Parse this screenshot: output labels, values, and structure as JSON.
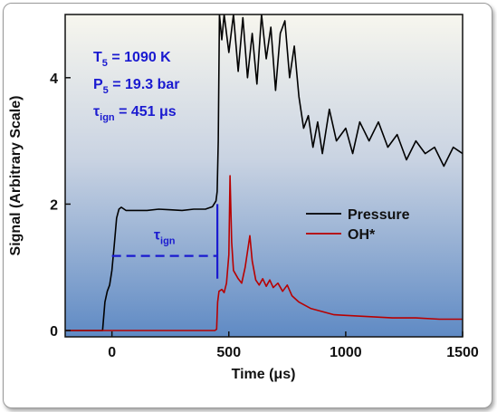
{
  "chart_data": {
    "type": "line",
    "xlabel": "Time (μs)",
    "ylabel": "Signal (Arbitrary Scale)",
    "xlim": [
      -200,
      1500
    ],
    "ylim": [
      -0.1,
      5.0
    ],
    "xticks": [
      0,
      500,
      1000,
      1500
    ],
    "yticks": [
      0,
      2,
      4
    ],
    "xtick_labels": [
      "0",
      "500",
      "1000",
      "1500"
    ],
    "ytick_labels": [
      "0",
      "2",
      "4"
    ],
    "legend_position": "center-right",
    "series": [
      {
        "name": "Pressure",
        "color": "#000000",
        "x": [
          -200,
          -40,
          -30,
          -20,
          -10,
          0,
          10,
          20,
          30,
          40,
          60,
          100,
          150,
          200,
          250,
          300,
          350,
          400,
          430,
          445,
          450,
          455,
          460,
          470,
          480,
          500,
          520,
          540,
          560,
          580,
          600,
          620,
          640,
          660,
          680,
          700,
          720,
          740,
          760,
          780,
          800,
          820,
          840,
          860,
          880,
          900,
          930,
          960,
          1000,
          1030,
          1060,
          1100,
          1140,
          1180,
          1220,
          1260,
          1300,
          1340,
          1380,
          1420,
          1460,
          1500
        ],
        "y": [
          0.0,
          0.0,
          0.45,
          0.62,
          0.72,
          0.95,
          1.35,
          1.78,
          1.92,
          1.95,
          1.9,
          1.9,
          1.9,
          1.92,
          1.91,
          1.9,
          1.92,
          1.92,
          1.96,
          2.05,
          2.2,
          3.0,
          5.0,
          4.6,
          5.0,
          4.4,
          5.0,
          4.1,
          4.95,
          4.0,
          4.7,
          3.9,
          5.0,
          4.3,
          4.8,
          3.8,
          4.7,
          4.9,
          4.0,
          4.5,
          3.7,
          3.2,
          3.4,
          2.9,
          3.3,
          2.8,
          3.5,
          3.0,
          3.2,
          2.8,
          3.3,
          3.0,
          3.3,
          2.9,
          3.1,
          2.7,
          3.0,
          2.8,
          2.9,
          2.6,
          2.9,
          2.8
        ]
      },
      {
        "name": "OH*",
        "color": "#b80000",
        "x": [
          -200,
          0,
          200,
          400,
          440,
          448,
          452,
          458,
          470,
          480,
          490,
          500,
          505,
          512,
          520,
          540,
          555,
          570,
          590,
          600,
          615,
          630,
          645,
          660,
          675,
          690,
          710,
          730,
          750,
          770,
          800,
          850,
          900,
          950,
          1000,
          1100,
          1200,
          1300,
          1400,
          1500
        ],
        "y": [
          0.0,
          0.0,
          0.0,
          0.0,
          0.0,
          0.02,
          0.45,
          0.62,
          0.65,
          0.6,
          0.75,
          1.2,
          2.45,
          1.4,
          0.95,
          0.82,
          0.75,
          1.0,
          1.5,
          1.1,
          0.8,
          0.72,
          0.82,
          0.7,
          0.8,
          0.68,
          0.75,
          0.62,
          0.72,
          0.55,
          0.45,
          0.35,
          0.3,
          0.25,
          0.24,
          0.22,
          0.2,
          0.2,
          0.18,
          0.18
        ]
      }
    ],
    "annotations": [
      {
        "text_main": "T",
        "text_sub": "5",
        "text_rest": " = 1090 K"
      },
      {
        "text_main": "P",
        "text_sub": "5",
        "text_rest": " = 19.3 bar"
      },
      {
        "text_main": "τ",
        "text_sub": "ign",
        "text_rest": " = 451 μs"
      }
    ],
    "tau_marker": {
      "label": "τ",
      "label_sub": "ign",
      "x_start": 0,
      "x_end": 451,
      "y": 1.18,
      "line_y_low": 0.82,
      "line_y_high": 2.0
    },
    "colors": {
      "annotation": "#1a1ad0",
      "pressure": "#000000",
      "oh": "#b80000"
    }
  }
}
